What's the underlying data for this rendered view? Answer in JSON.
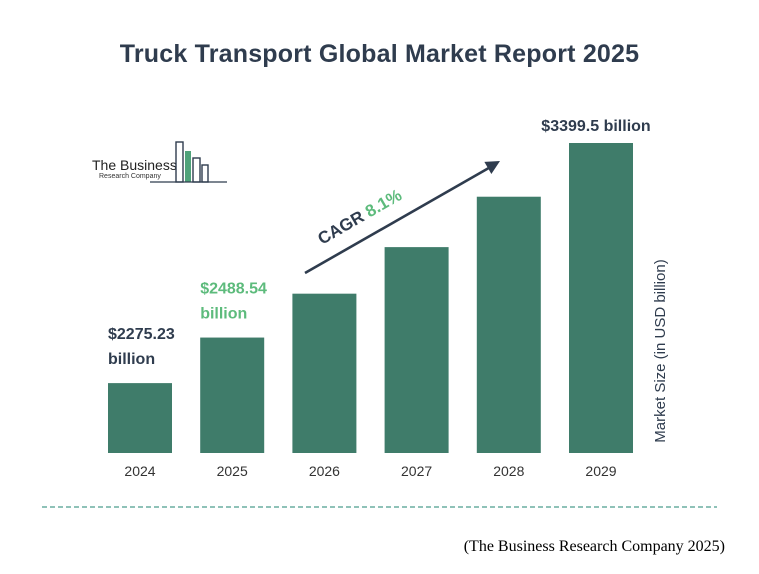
{
  "title": "Truck Transport Global Market Report 2025",
  "source": "(The Business Research Company 2025)",
  "logo": {
    "line1": "The Business",
    "line2": "Research Company"
  },
  "cagr": {
    "label": "CAGR",
    "value": "8.1%"
  },
  "colors": {
    "bar": "#3f7c6a",
    "title": "#2f3c4e",
    "highlight": "#5dbb7c",
    "label": "#2f3c4e",
    "dash": "#6aaea0"
  },
  "chart_data": {
    "type": "bar",
    "title": "Truck Transport Global Market Report 2025",
    "categories": [
      "2024",
      "2025",
      "2026",
      "2027",
      "2028",
      "2029"
    ],
    "values": [
      2275.23,
      2488.54,
      2694,
      2912,
      3148,
      3399.5
    ],
    "ylabel": "Market Size (in USD billion)",
    "xlabel": "",
    "data_labels": [
      {
        "index": 0,
        "lines": [
          "$2275.23",
          "billion"
        ],
        "color": "#2f3c4e"
      },
      {
        "index": 1,
        "lines": [
          "$2488.54",
          "billion"
        ],
        "color": "#5dbb7c"
      },
      {
        "index": 5,
        "lines": [
          "$3399.5 billion"
        ],
        "color": "#2f3c4e"
      }
    ]
  }
}
